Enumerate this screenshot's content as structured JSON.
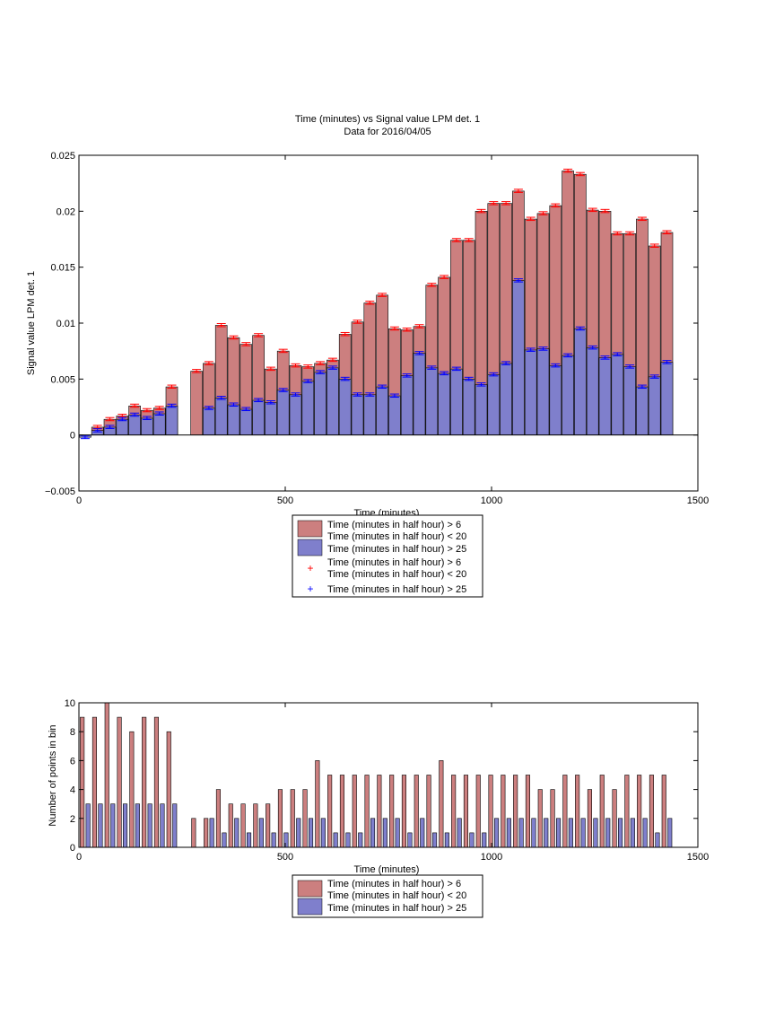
{
  "chart_data": [
    {
      "type": "bar",
      "title": "Time (minutes) vs Signal value LPM det. 1",
      "subtitle": "Data for 2016/04/05",
      "xlabel": "Time (minutes)",
      "ylabel": "Signal value LPM det. 1",
      "xlim": [
        0,
        1500
      ],
      "ylim": [
        -0.005,
        0.025
      ],
      "xticks": [
        "0",
        "500",
        "1000",
        "1500"
      ],
      "yticks": [
        "−0.005",
        "0",
        "0.005",
        "0.01",
        "0.015",
        "0.02",
        "0.025"
      ],
      "legend_position": "below",
      "legend": [
        "Time (minutes in half hour) > 6",
        "Time (minutes in half hour) < 20",
        "Time (minutes in half hour) > 25",
        "Time (minutes in half hour) > 6",
        "Time (minutes in half hour) < 20",
        "Time (minutes in half hour) > 25"
      ],
      "colors": {
        "red_bar": "#cc7f7f",
        "blue_bar": "#7f7fcc",
        "red_marker": "#ff0000",
        "blue_marker": "#0000ff"
      },
      "x": [
        15,
        45,
        75,
        105,
        135,
        165,
        195,
        225,
        285,
        315,
        345,
        375,
        405,
        435,
        465,
        495,
        525,
        555,
        585,
        615,
        645,
        675,
        705,
        735,
        765,
        795,
        825,
        855,
        885,
        915,
        945,
        975,
        1005,
        1035,
        1065,
        1095,
        1125,
        1155,
        1185,
        1215,
        1245,
        1275,
        1305,
        1335,
        1365,
        1395,
        1425
      ],
      "series": [
        {
          "name": "Time (minutes in half hour) > 6",
          "values": [
            0.0,
            0.0007,
            0.0014,
            0.0017,
            0.0026,
            0.0022,
            0.0024,
            0.0043,
            0.0057,
            0.0064,
            0.0098,
            0.0087,
            0.0081,
            0.0089,
            0.0059,
            0.0075,
            0.0062,
            0.0061,
            0.0064,
            0.0067,
            0.009,
            0.0101,
            0.0118,
            0.0125,
            0.0095,
            0.0094,
            0.0097,
            0.0134,
            0.0141,
            0.0174,
            0.0174,
            0.02,
            0.0207,
            0.0207,
            0.0218,
            0.0193,
            0.0198,
            0.0205,
            0.0236,
            0.0233,
            0.0201,
            0.02,
            0.018,
            0.018,
            0.0193,
            0.0169,
            0.0181
          ]
        },
        {
          "name": "Time (minutes in half hour) > 25",
          "values": [
            -0.0002,
            0.0004,
            0.0007,
            0.0014,
            0.0018,
            0.0015,
            0.0019,
            0.0026,
            0.0,
            0.0024,
            0.0033,
            0.0027,
            0.0023,
            0.0031,
            0.0029,
            0.004,
            0.0036,
            0.0048,
            0.0056,
            0.006,
            0.005,
            0.0036,
            0.0036,
            0.0043,
            0.0035,
            0.0053,
            0.0073,
            0.006,
            0.0055,
            0.0059,
            0.005,
            0.0045,
            0.0054,
            0.0064,
            0.0138,
            0.0076,
            0.0077,
            0.0062,
            0.0071,
            0.0095,
            0.0078,
            0.0069,
            0.0072,
            0.0061,
            0.0043,
            0.0052,
            0.0065
          ]
        }
      ]
    },
    {
      "type": "bar",
      "xlabel": "Time (minutes)",
      "ylabel": "Number of points in bin",
      "xlim": [
        0,
        1500
      ],
      "ylim": [
        0,
        10
      ],
      "xticks": [
        "0",
        "500",
        "1000",
        "1500"
      ],
      "yticks": [
        "0",
        "2",
        "4",
        "6",
        "8",
        "10"
      ],
      "legend_position": "below",
      "legend": [
        "Time (minutes in half hour) > 6",
        "Time (minutes in half hour) < 20",
        "Time (minutes in half hour) > 25"
      ],
      "colors": {
        "red_bar": "#cc7f7f",
        "blue_bar": "#7f7fcc"
      },
      "x": [
        15,
        45,
        75,
        105,
        135,
        165,
        195,
        225,
        285,
        315,
        345,
        375,
        405,
        435,
        465,
        495,
        525,
        555,
        585,
        615,
        645,
        675,
        705,
        735,
        765,
        795,
        825,
        855,
        885,
        915,
        945,
        975,
        1005,
        1035,
        1065,
        1095,
        1125,
        1155,
        1185,
        1215,
        1245,
        1275,
        1305,
        1335,
        1365,
        1395,
        1425
      ],
      "series": [
        {
          "name": "Time (minutes in half hour) > 6",
          "values": [
            9,
            9,
            10,
            9,
            8,
            9,
            9,
            8,
            2,
            2,
            4,
            3,
            3,
            3,
            3,
            4,
            4,
            4,
            6,
            5,
            5,
            5,
            5,
            5,
            5,
            5,
            5,
            5,
            6,
            5,
            5,
            5,
            5,
            5,
            5,
            5,
            4,
            4,
            5,
            5,
            4,
            5,
            4,
            5,
            5,
            5,
            5
          ]
        },
        {
          "name": "Time (minutes in half hour) > 25",
          "values": [
            3,
            3,
            3,
            3,
            3,
            3,
            3,
            3,
            0,
            2,
            1,
            2,
            1,
            2,
            1,
            1,
            2,
            2,
            2,
            1,
            1,
            1,
            2,
            2,
            2,
            1,
            2,
            1,
            1,
            2,
            1,
            1,
            2,
            2,
            2,
            2,
            2,
            2,
            2,
            2,
            2,
            2,
            2,
            2,
            2,
            1,
            2
          ]
        }
      ]
    }
  ]
}
